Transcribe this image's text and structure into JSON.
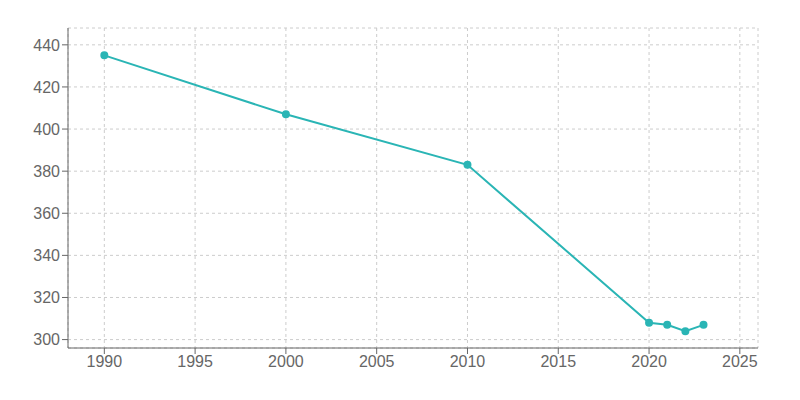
{
  "chart_data": {
    "type": "line",
    "x": [
      1990,
      2000,
      2010,
      2020,
      2021,
      2022,
      2023
    ],
    "values": [
      435,
      407,
      383,
      308,
      307,
      304,
      307
    ],
    "color": "#2ab5b5",
    "marker": "circle",
    "xlim": [
      1988,
      2026
    ],
    "ylim": [
      296,
      448
    ],
    "xticks": [
      1990,
      1995,
      2000,
      2005,
      2010,
      2015,
      2020,
      2025
    ],
    "yticks": [
      300,
      320,
      340,
      360,
      380,
      400,
      420,
      440
    ],
    "grid": true
  }
}
